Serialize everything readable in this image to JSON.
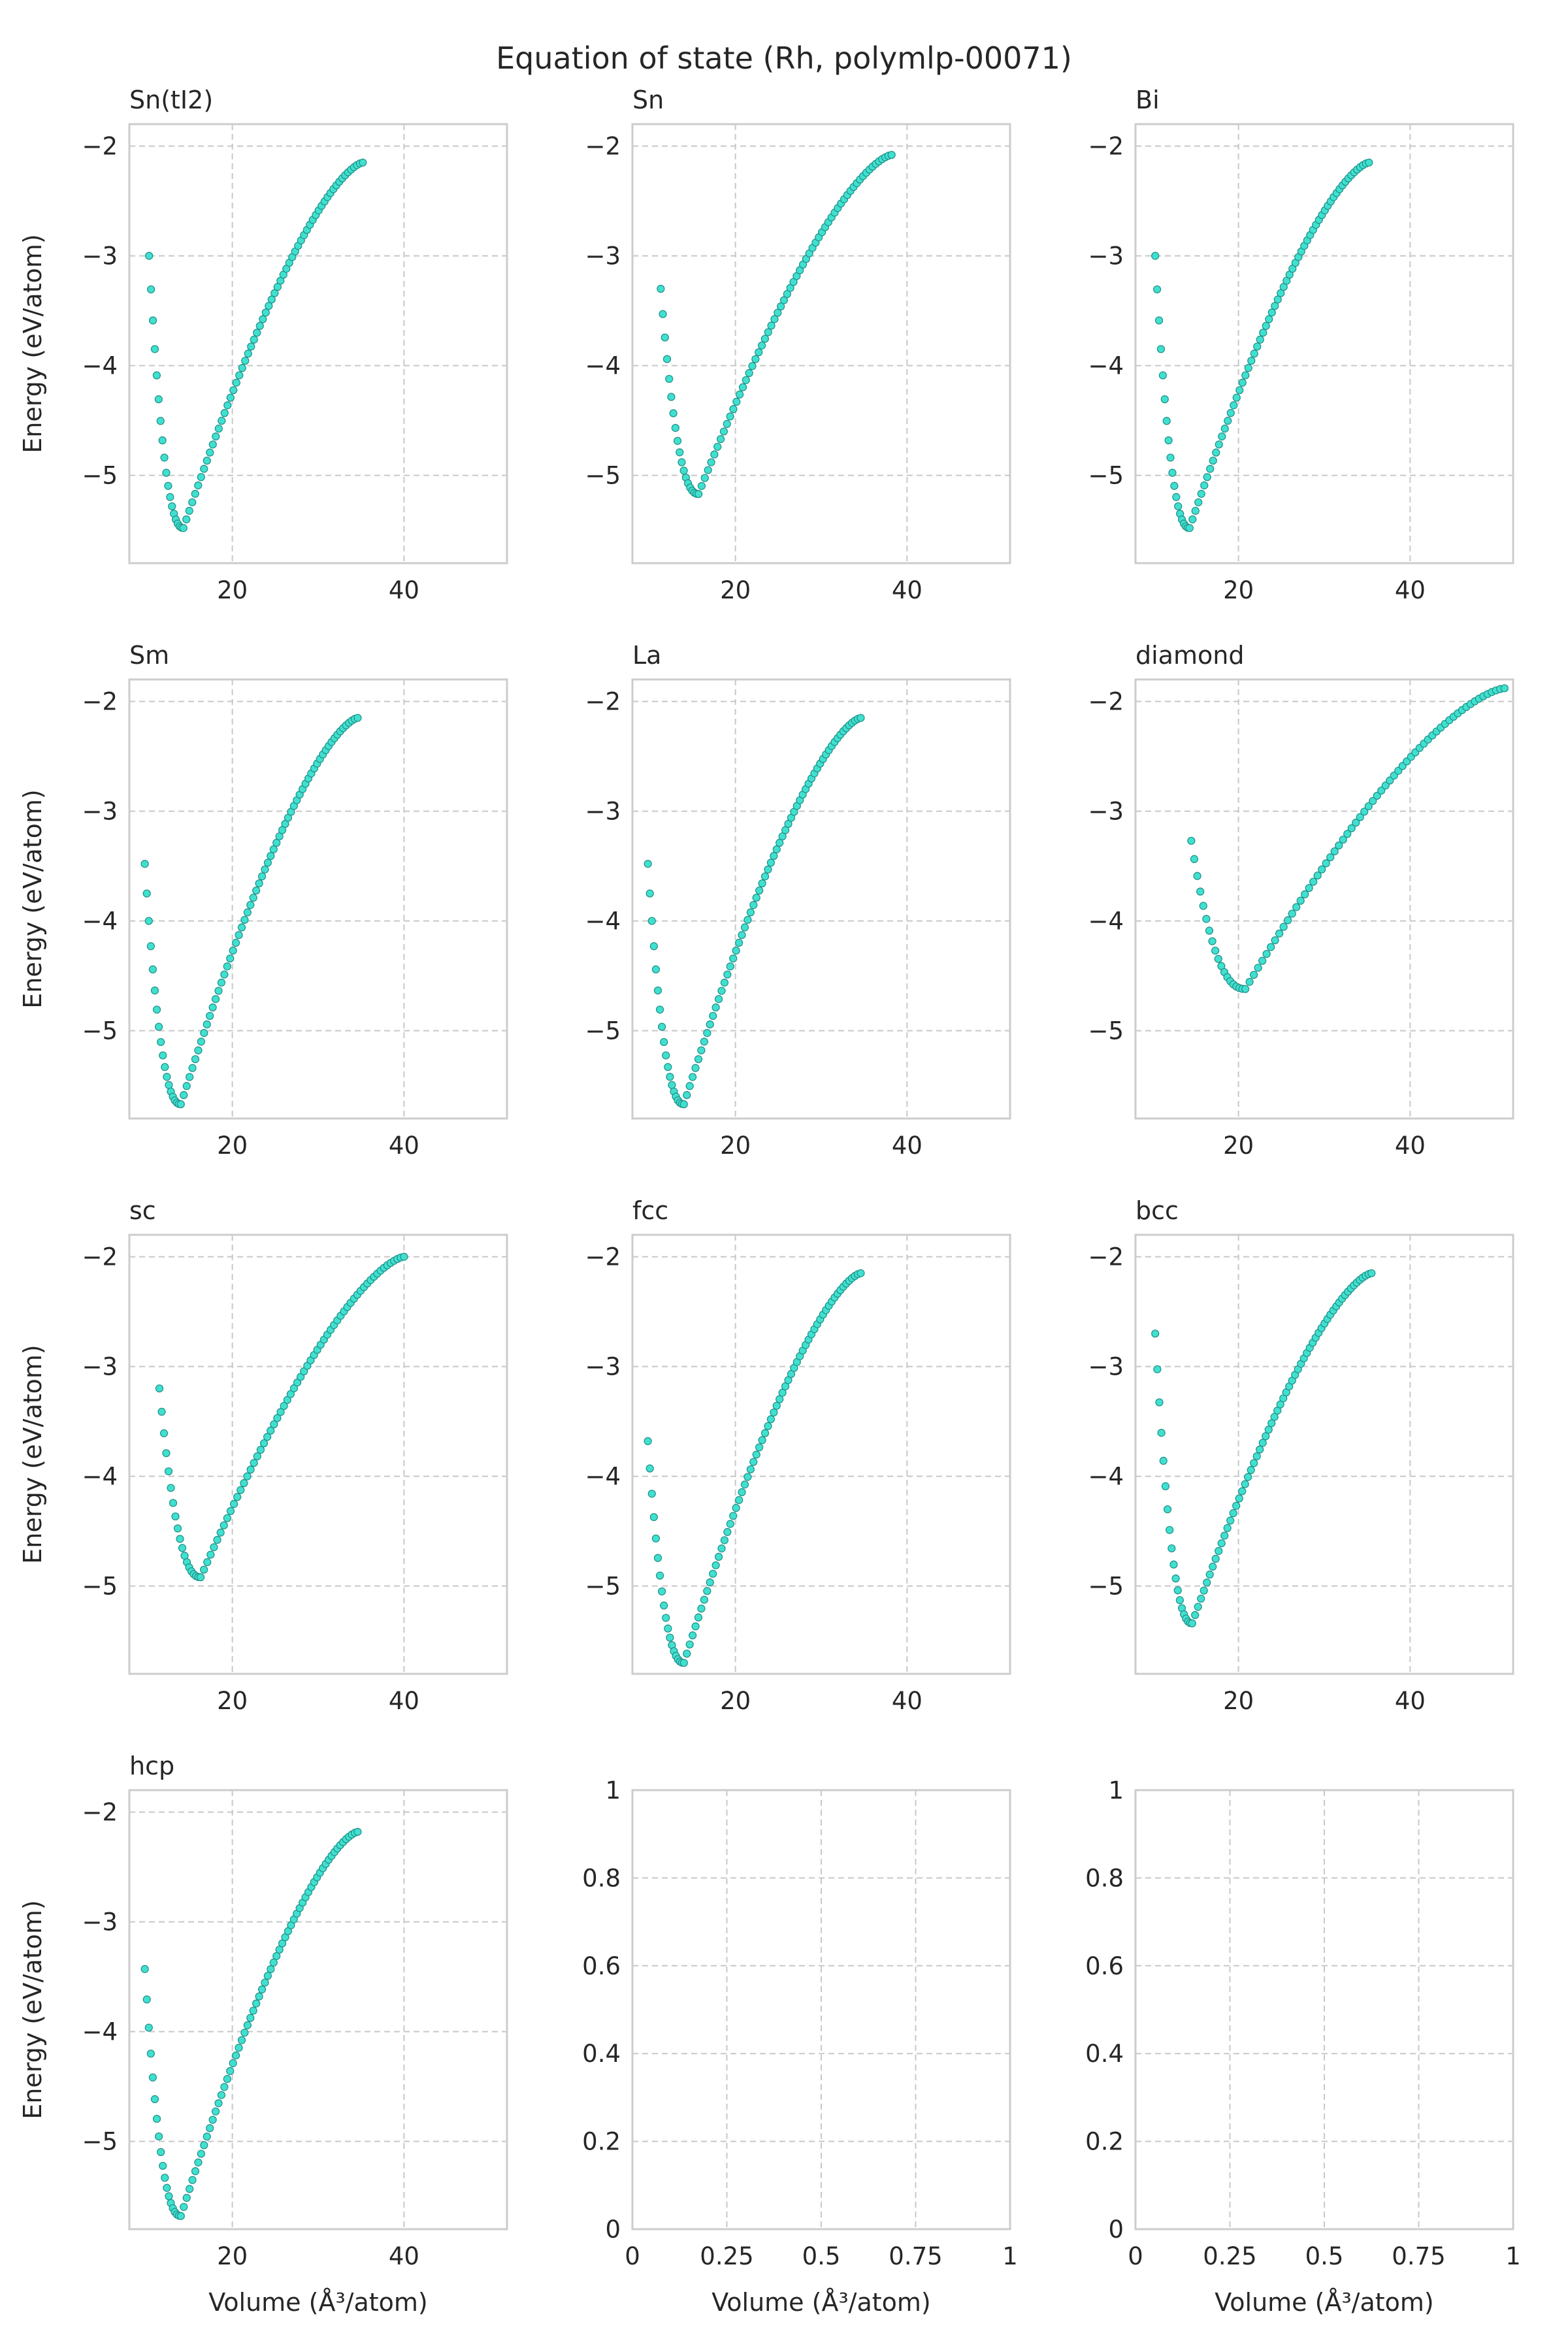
{
  "figure": {
    "title": "Equation of state (Rh, polymlp-00071)"
  },
  "style": {
    "point_fill": "#40E0D0",
    "point_edge": "#1f8f86",
    "grid_color": "#c8c8c8",
    "spine_color": "#cccccc",
    "text_color": "#262626"
  },
  "chart_data": [
    {
      "type": "scatter",
      "title": "Sn(tI2)",
      "xlabel": "",
      "ylabel": "Energy (eV/atom)",
      "xlim": [
        8,
        52
      ],
      "ylim": [
        -5.8,
        -1.8
      ],
      "xticks": [
        20,
        40
      ],
      "yticks": [
        -5,
        -4,
        -3,
        -2
      ],
      "grid": true,
      "curve": {
        "v_min": 10.3,
        "v_eq": 14.3,
        "v_max": 35.2,
        "e_start": -3.0,
        "e_min": -5.48,
        "e_end": -2.15
      }
    },
    {
      "type": "scatter",
      "title": "Sn",
      "xlabel": "",
      "ylabel": "",
      "xlim": [
        8,
        52
      ],
      "ylim": [
        -5.8,
        -1.8
      ],
      "xticks": [
        20,
        40
      ],
      "yticks": [
        -5,
        -4,
        -3,
        -2
      ],
      "grid": true,
      "curve": {
        "v_min": 11.3,
        "v_eq": 15.7,
        "v_max": 38.2,
        "e_start": -3.3,
        "e_min": -5.17,
        "e_end": -2.08
      }
    },
    {
      "type": "scatter",
      "title": "Bi",
      "xlabel": "",
      "ylabel": "",
      "xlim": [
        8,
        52
      ],
      "ylim": [
        -5.8,
        -1.8
      ],
      "xticks": [
        20,
        40
      ],
      "yticks": [
        -5,
        -4,
        -3,
        -2
      ],
      "grid": true,
      "curve": {
        "v_min": 10.3,
        "v_eq": 14.3,
        "v_max": 35.2,
        "e_start": -3.0,
        "e_min": -5.48,
        "e_end": -2.15
      }
    },
    {
      "type": "scatter",
      "title": "Sm",
      "xlabel": "",
      "ylabel": "Energy (eV/atom)",
      "xlim": [
        8,
        52
      ],
      "ylim": [
        -5.8,
        -1.8
      ],
      "xticks": [
        20,
        40
      ],
      "yticks": [
        -5,
        -4,
        -3,
        -2
      ],
      "grid": true,
      "curve": {
        "v_min": 9.8,
        "v_eq": 14.0,
        "v_max": 34.6,
        "e_start": -3.48,
        "e_min": -5.67,
        "e_end": -2.15
      }
    },
    {
      "type": "scatter",
      "title": "La",
      "xlabel": "",
      "ylabel": "",
      "xlim": [
        8,
        52
      ],
      "ylim": [
        -5.8,
        -1.8
      ],
      "xticks": [
        20,
        40
      ],
      "yticks": [
        -5,
        -4,
        -3,
        -2
      ],
      "grid": true,
      "curve": {
        "v_min": 9.8,
        "v_eq": 14.0,
        "v_max": 34.6,
        "e_start": -3.48,
        "e_min": -5.67,
        "e_end": -2.15
      }
    },
    {
      "type": "scatter",
      "title": "diamond",
      "xlabel": "",
      "ylabel": "",
      "xlim": [
        8,
        52
      ],
      "ylim": [
        -5.8,
        -1.8
      ],
      "xticks": [
        20,
        40
      ],
      "yticks": [
        -5,
        -4,
        -3,
        -2
      ],
      "grid": true,
      "curve": {
        "v_min": 14.5,
        "v_eq": 20.8,
        "v_max": 51.0,
        "e_start": -3.27,
        "e_min": -4.62,
        "e_end": -1.88
      }
    },
    {
      "type": "scatter",
      "title": "sc",
      "xlabel": "",
      "ylabel": "Energy (eV/atom)",
      "xlim": [
        8,
        52
      ],
      "ylim": [
        -5.8,
        -1.8
      ],
      "xticks": [
        20,
        40
      ],
      "yticks": [
        -5,
        -4,
        -3,
        -2
      ],
      "grid": true,
      "curve": {
        "v_min": 11.5,
        "v_eq": 16.3,
        "v_max": 40.0,
        "e_start": -3.2,
        "e_min": -4.92,
        "e_end": -2.0
      }
    },
    {
      "type": "scatter",
      "title": "fcc",
      "xlabel": "",
      "ylabel": "",
      "xlim": [
        8,
        52
      ],
      "ylim": [
        -5.8,
        -1.8
      ],
      "xticks": [
        20,
        40
      ],
      "yticks": [
        -5,
        -4,
        -3,
        -2
      ],
      "grid": true,
      "curve": {
        "v_min": 9.8,
        "v_eq": 14.0,
        "v_max": 34.6,
        "e_start": -3.68,
        "e_min": -5.7,
        "e_end": -2.15
      }
    },
    {
      "type": "scatter",
      "title": "bcc",
      "xlabel": "",
      "ylabel": "",
      "xlim": [
        8,
        52
      ],
      "ylim": [
        -5.8,
        -1.8
      ],
      "xticks": [
        20,
        40
      ],
      "yticks": [
        -5,
        -4,
        -3,
        -2
      ],
      "grid": true,
      "curve": {
        "v_min": 10.3,
        "v_eq": 14.6,
        "v_max": 35.5,
        "e_start": -2.7,
        "e_min": -5.34,
        "e_end": -2.15
      }
    },
    {
      "type": "scatter",
      "title": "hcp",
      "xlabel": "Volume (Å³/atom)",
      "ylabel": "Energy (eV/atom)",
      "xlim": [
        8,
        52
      ],
      "ylim": [
        -5.8,
        -1.8
      ],
      "xticks": [
        20,
        40
      ],
      "yticks": [
        -5,
        -4,
        -3,
        -2
      ],
      "grid": true,
      "curve": {
        "v_min": 9.8,
        "v_eq": 14.0,
        "v_max": 34.6,
        "e_start": -3.43,
        "e_min": -5.68,
        "e_end": -2.18
      }
    },
    {
      "type": "scatter",
      "title": "",
      "xlabel": "Volume (Å³/atom)",
      "ylabel": "",
      "xlim": [
        0,
        1
      ],
      "ylim": [
        0,
        1
      ],
      "xticks": [
        0.0,
        0.25,
        0.5,
        0.75,
        1.0
      ],
      "yticks": [
        0.0,
        0.2,
        0.4,
        0.6,
        0.8,
        1.0
      ],
      "grid": true,
      "curve": null
    },
    {
      "type": "scatter",
      "title": "",
      "xlabel": "Volume (Å³/atom)",
      "ylabel": "",
      "xlim": [
        0,
        1
      ],
      "ylim": [
        0,
        1
      ],
      "xticks": [
        0.0,
        0.25,
        0.5,
        0.75,
        1.0
      ],
      "yticks": [
        0.0,
        0.2,
        0.4,
        0.6,
        0.8,
        1.0
      ],
      "grid": true,
      "curve": null
    }
  ]
}
